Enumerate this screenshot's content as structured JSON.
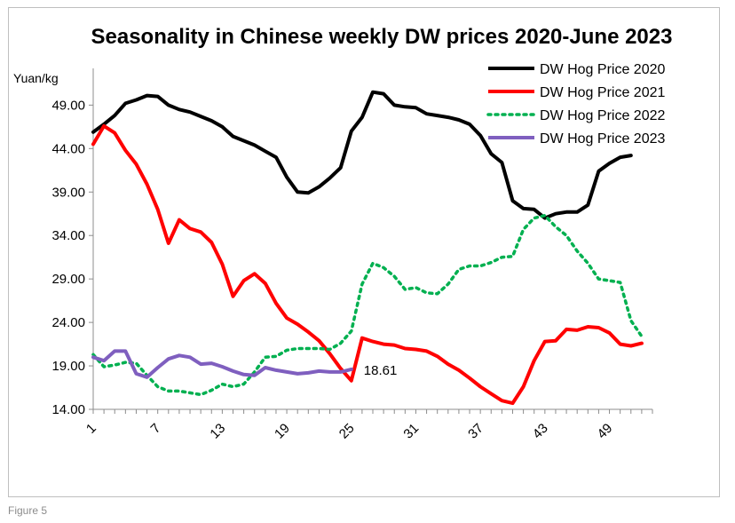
{
  "caption": "Figure 5",
  "chart_data": {
    "type": "line",
    "title": "Seasonality in Chinese weekly DW prices 2020-June 2023",
    "ylabel": "Yuan/kg",
    "xlabel": "",
    "ylim": [
      14.0,
      52.0
    ],
    "yticks": [
      "14.00",
      "19.00",
      "24.00",
      "29.00",
      "34.00",
      "39.00",
      "44.00",
      "49.00"
    ],
    "xlim": [
      1,
      53
    ],
    "xticks": [
      "1",
      "7",
      "13",
      "19",
      "25",
      "31",
      "37",
      "43",
      "49"
    ],
    "legend_position": "top-right",
    "grid": false,
    "annotation": {
      "text": "18.61",
      "x": 25,
      "y": 18.61
    },
    "series": [
      {
        "name": "DW Hog Price 2020",
        "color": "#000000",
        "style": "solid",
        "values": [
          45.9,
          46.8,
          47.8,
          49.2,
          49.6,
          50.1,
          50.0,
          49.0,
          48.5,
          48.2,
          47.7,
          47.2,
          46.5,
          45.4,
          44.9,
          44.4,
          43.7,
          43.0,
          40.7,
          39.0,
          38.9,
          39.6,
          40.6,
          41.8,
          46.0,
          47.6,
          50.5,
          50.3,
          49.0,
          48.8,
          48.7,
          48.0,
          47.8,
          47.6,
          47.3,
          46.8,
          45.5,
          43.4,
          42.4,
          38.0,
          37.1,
          37.0,
          36.0,
          36.5,
          36.7,
          36.7,
          37.5,
          41.4,
          42.3,
          43.0,
          43.2
        ]
      },
      {
        "name": "DW Hog Price 2021",
        "color": "#ff0000",
        "style": "solid",
        "values": [
          44.5,
          46.6,
          45.8,
          43.8,
          42.2,
          39.9,
          37.0,
          33.1,
          35.8,
          34.8,
          34.4,
          33.2,
          30.7,
          27.0,
          28.8,
          29.6,
          28.5,
          26.2,
          24.5,
          23.8,
          22.9,
          21.9,
          20.4,
          18.7,
          17.3,
          22.2,
          21.8,
          21.5,
          21.4,
          21.0,
          20.9,
          20.7,
          20.1,
          19.2,
          18.5,
          17.6,
          16.6,
          15.8,
          15.0,
          14.7,
          16.6,
          19.6,
          21.8,
          21.9,
          23.2,
          23.1,
          23.5,
          23.4,
          22.8,
          21.5,
          21.3,
          21.6
        ]
      },
      {
        "name": "DW Hog Price 2022",
        "color": "#00b050",
        "style": "dotted",
        "values": [
          20.3,
          18.9,
          19.1,
          19.4,
          19.3,
          17.9,
          16.6,
          16.1,
          16.1,
          15.9,
          15.7,
          16.2,
          16.9,
          16.6,
          16.9,
          18.3,
          20.0,
          20.1,
          20.8,
          21.0,
          21.0,
          21.0,
          20.9,
          21.6,
          23.0,
          28.4,
          30.8,
          30.3,
          29.3,
          27.8,
          28.0,
          27.4,
          27.3,
          28.4,
          30.1,
          30.5,
          30.5,
          30.9,
          31.5,
          31.6,
          34.7,
          36.0,
          36.3,
          35.0,
          34.0,
          32.2,
          30.8,
          29.0,
          28.8,
          28.6,
          24.2,
          22.4
        ]
      },
      {
        "name": "DW Hog Price 2023",
        "color": "#7f5fbf",
        "style": "solid",
        "values": [
          20.0,
          19.6,
          20.7,
          20.7,
          18.1,
          17.7,
          18.8,
          19.8,
          20.2,
          20.0,
          19.2,
          19.3,
          18.9,
          18.4,
          18.0,
          17.9,
          18.8,
          18.5,
          18.3,
          18.1,
          18.2,
          18.4,
          18.3,
          18.3,
          18.61
        ]
      }
    ]
  }
}
